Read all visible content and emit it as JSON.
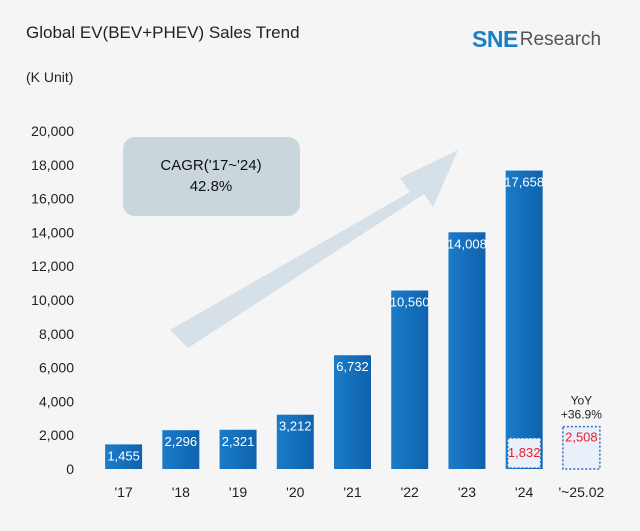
{
  "header": {
    "title": "Global EV(BEV+PHEV) Sales Trend",
    "unit": "(K Unit)",
    "logo_sne": "SNE",
    "logo_research": "Research"
  },
  "colors": {
    "bar": "#1a7cc9",
    "bar_dark": "#0f62ad",
    "highlight_text": "#e8202a",
    "highlight_border": "#2f6fc0",
    "highlight_fill": "#e9f0fa",
    "arrow": "#d0dce6",
    "cagr_box": "#c9d6dc"
  },
  "annotations": {
    "cagr_line1": "CAGR('17~'24)",
    "cagr_line2": "42.8%",
    "yoy_line1": "YoY",
    "yoy_line2": "+36.9%"
  },
  "chart_data": {
    "type": "bar",
    "title": "Global EV(BEV+PHEV) Sales Trend",
    "ylabel": "(K Unit)",
    "xlabel": "",
    "ylim": [
      0,
      20000
    ],
    "yticks": [
      0,
      2000,
      4000,
      6000,
      8000,
      10000,
      12000,
      14000,
      16000,
      18000,
      20000
    ],
    "ytick_labels": [
      "0",
      "2,000",
      "4,000",
      "6,000",
      "8,000",
      "10,000",
      "12,000",
      "14,000",
      "16,000",
      "18,000",
      "20,000"
    ],
    "grid": false,
    "categories": [
      "'17",
      "'18",
      "'19",
      "'20",
      "'21",
      "'22",
      "'23",
      "'24",
      "'~25.02"
    ],
    "values": [
      1455,
      2296,
      2321,
      3212,
      6732,
      10560,
      14008,
      17658,
      2508
    ],
    "value_labels": [
      "1,455",
      "2,296",
      "2,321",
      "3,212",
      "6,732",
      "10,560",
      "14,008",
      "17,658",
      "2,508"
    ],
    "highlight": {
      "category": "'24",
      "value": 1832,
      "label": "1,832"
    }
  }
}
